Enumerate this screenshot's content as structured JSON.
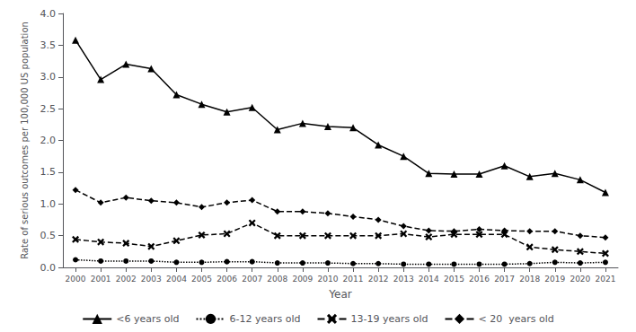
{
  "chart_data": {
    "type": "line",
    "xlabel": "Year",
    "ylabel": "Rate of serious outcomes per 100,000 US population",
    "x": [
      2000,
      2001,
      2002,
      2003,
      2004,
      2005,
      2006,
      2007,
      2008,
      2009,
      2010,
      2011,
      2012,
      2013,
      2014,
      2015,
      2016,
      2017,
      2018,
      2019,
      2020,
      2021
    ],
    "series": [
      {
        "name": "<6 years old",
        "color": "#000000",
        "marker": "triangle",
        "line_style": "solid",
        "values": [
          3.58,
          2.96,
          3.2,
          3.13,
          2.72,
          2.57,
          2.45,
          2.52,
          2.17,
          2.27,
          2.22,
          2.2,
          1.93,
          1.75,
          1.48,
          1.47,
          1.47,
          1.6,
          1.43,
          1.48,
          1.38,
          1.18
        ]
      },
      {
        "name": "6-12 years old",
        "color": "#000000",
        "marker": "circle",
        "line_style": "dotted",
        "values": [
          0.12,
          0.1,
          0.1,
          0.1,
          0.08,
          0.08,
          0.09,
          0.09,
          0.07,
          0.07,
          0.07,
          0.06,
          0.06,
          0.05,
          0.05,
          0.05,
          0.05,
          0.05,
          0.06,
          0.08,
          0.07,
          0.08
        ]
      },
      {
        "name": "13-19 years old",
        "color": "#000000",
        "marker": "x",
        "line_style": "dashed",
        "values": [
          0.44,
          0.4,
          0.38,
          0.33,
          0.42,
          0.51,
          0.53,
          0.7,
          0.5,
          0.5,
          0.5,
          0.5,
          0.5,
          0.53,
          0.48,
          0.52,
          0.52,
          0.52,
          0.32,
          0.28,
          0.25,
          0.22
        ]
      },
      {
        "name": "< 20  years old",
        "color": "#000000",
        "marker": "diamond",
        "line_style": "dashed",
        "values": [
          1.22,
          1.02,
          1.1,
          1.05,
          1.02,
          0.95,
          1.02,
          1.06,
          0.88,
          0.88,
          0.85,
          0.8,
          0.75,
          0.65,
          0.58,
          0.57,
          0.6,
          0.58,
          0.57,
          0.57,
          0.5,
          0.47
        ]
      }
    ],
    "xlim": [
      1999.5,
      2021.5
    ],
    "xticks": [
      2000,
      2001,
      2002,
      2003,
      2004,
      2005,
      2006,
      2007,
      2008,
      2009,
      2010,
      2011,
      2012,
      2013,
      2014,
      2015,
      2016,
      2017,
      2018,
      2019,
      2020,
      2021
    ],
    "ylim": [
      0.0,
      4.0
    ],
    "yticks": [
      {
        "value": 0.0,
        "label": "0.0"
      },
      0.5,
      {
        "value": 1.0,
        "label": "1.0"
      },
      1.5,
      {
        "value": 2.0,
        "label": "2.0"
      },
      2.5,
      {
        "value": 3.0,
        "label": "3.0"
      },
      3.5,
      {
        "value": 4.0,
        "label": "4.0"
      }
    ],
    "grid": false,
    "legend": "bottom"
  }
}
